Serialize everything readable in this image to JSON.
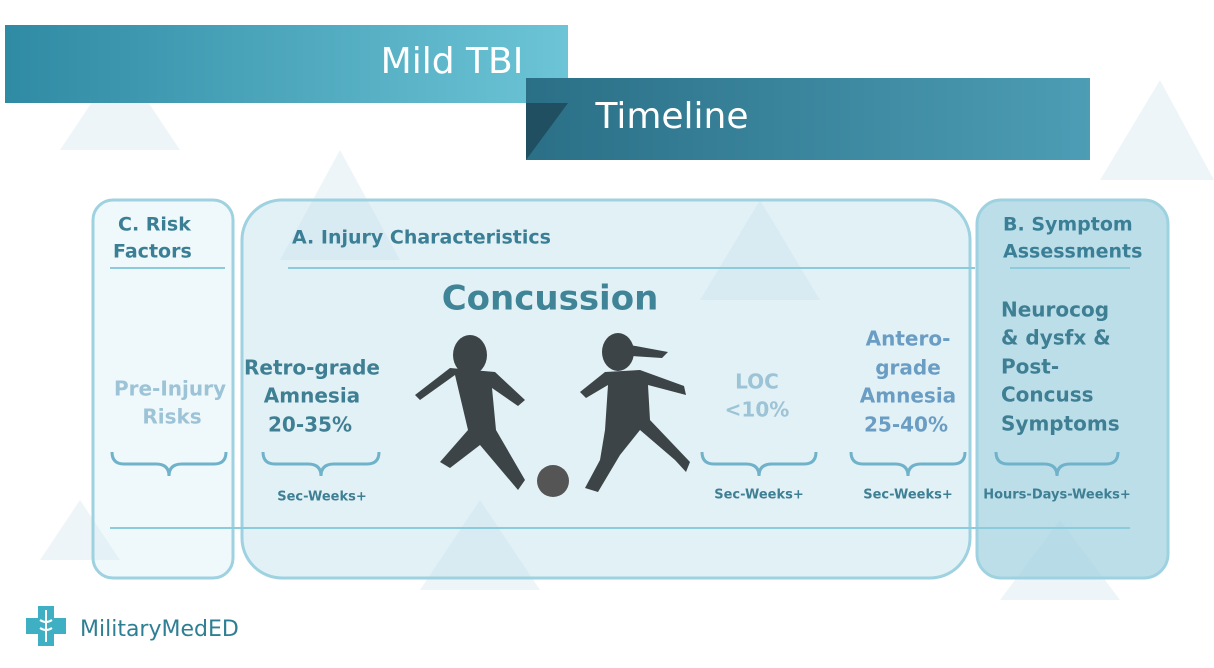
{
  "header": {
    "title": "Mild TBI",
    "subtitle": "Timeline"
  },
  "risk_factors": {
    "heading": [
      "C. Risk",
      "Factors"
    ],
    "item": [
      "Pre-Injury",
      "Risks"
    ]
  },
  "injury_characteristics": {
    "heading": "A. Injury Characteristics",
    "center": "Concussion",
    "items": [
      {
        "lines": [
          "Retro-grade",
          "Amnesia",
          "20-35%"
        ],
        "duration": "Sec-Weeks+"
      },
      {
        "lines": [
          "LOC",
          "<10%"
        ],
        "duration": "Sec-Weeks+"
      },
      {
        "lines": [
          "Antero-",
          "grade",
          "Amnesia",
          "25-40%"
        ],
        "duration": "Sec-Weeks+"
      }
    ]
  },
  "symptom_assessments": {
    "heading": [
      "B. Symptom",
      "Assessments"
    ],
    "lines": [
      "Neurocog",
      "& dysfx &",
      "Post-",
      "Concuss",
      "Symptoms"
    ],
    "duration": "Hours-Days-Weeks+"
  },
  "footer": {
    "brand": "MilitaryMedED"
  }
}
